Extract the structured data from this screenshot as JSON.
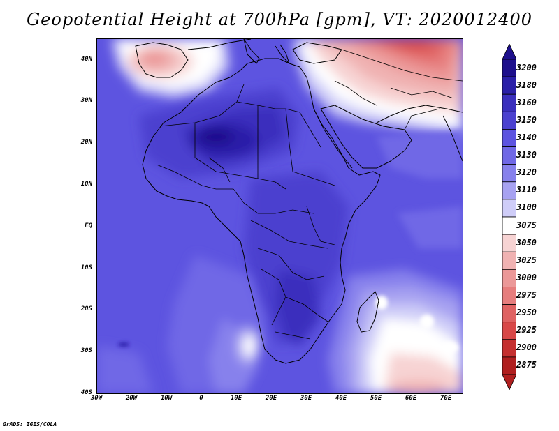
{
  "title": "Geopotential Height at 700hPa [gpm], VT: 2020012400",
  "credit": "GrADS: IGES/COLA",
  "map": {
    "variable": "Geopotential Height at 700hPa",
    "units": "gpm",
    "valid_time": "2020012400",
    "lat_labels": [
      "40N",
      "30N",
      "20N",
      "10N",
      "EQ",
      "10S",
      "20S",
      "30S",
      "40S"
    ],
    "lon_labels": [
      "30W",
      "20W",
      "10W",
      "0",
      "10E",
      "20E",
      "30E",
      "40E",
      "50E",
      "60E",
      "70E"
    ],
    "background_color": "#5d54e0"
  },
  "legend": {
    "levels": [
      {
        "label": "3200",
        "color": "#1d0f8c"
      },
      {
        "label": "3180",
        "color": "#2a1fa8"
      },
      {
        "label": "3160",
        "color": "#3a2fbd"
      },
      {
        "label": "3150",
        "color": "#4b41cf"
      },
      {
        "label": "3140",
        "color": "#5d54e0"
      },
      {
        "label": "3130",
        "color": "#7068e6"
      },
      {
        "label": "3120",
        "color": "#8781ec"
      },
      {
        "label": "3110",
        "color": "#a7a2f1"
      },
      {
        "label": "3100",
        "color": "#cfcdf8"
      },
      {
        "label": "3075",
        "color": "#ffffff"
      },
      {
        "label": "3050",
        "color": "#f7d3d3"
      },
      {
        "label": "3025",
        "color": "#f0b2b2"
      },
      {
        "label": "3000",
        "color": "#eb9898"
      },
      {
        "label": "2975",
        "color": "#e67d7d"
      },
      {
        "label": "2950",
        "color": "#df6262"
      },
      {
        "label": "2925",
        "color": "#d84848"
      },
      {
        "label": "2900",
        "color": "#c53030"
      },
      {
        "label": "2875",
        "color": "#b01f1f"
      }
    ],
    "top_arrow_color": "#1d0f8c",
    "bottom_arrow_color": "#b01f1f"
  }
}
